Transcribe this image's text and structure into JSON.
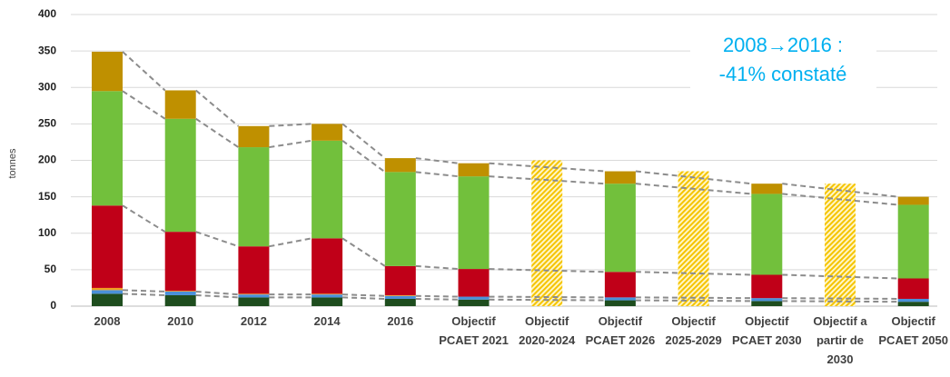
{
  "chart_data": {
    "type": "bar",
    "stacked": true,
    "y_label": "tonnes",
    "annotation": [
      "2008→2016 :",
      "-41% constaté"
    ],
    "annotation_color": "#00b0f0",
    "categories": [
      "2008",
      "2010",
      "2012",
      "2014",
      "2016",
      "Objectif PCAET 2021",
      "Objectif 2020-2024",
      "Objectif PCAET 2026",
      "Objectif 2025-2029",
      "Objectif PCAET 2030",
      "Objectif a partir de 2030",
      "Objectif PCAET 2050"
    ],
    "series": [
      {
        "color": "#1e4d1e",
        "values": [
          17,
          15,
          12,
          12,
          10,
          9,
          null,
          8,
          null,
          7,
          null,
          6
        ]
      },
      {
        "color": "#4a90d9",
        "values": [
          5,
          5,
          4,
          4,
          4,
          4,
          null,
          4,
          null,
          4,
          null,
          4
        ]
      },
      {
        "color": "#f0a020",
        "values": [
          3,
          1,
          1,
          1,
          1,
          0,
          null,
          0,
          null,
          0,
          null,
          0
        ]
      },
      {
        "color": "#c00018",
        "values": [
          113,
          81,
          65,
          76,
          40,
          38,
          null,
          35,
          null,
          32,
          null,
          28
        ]
      },
      {
        "color": "#72c03c",
        "values": [
          157,
          155,
          136,
          134,
          129,
          127,
          null,
          121,
          null,
          111,
          null,
          101
        ]
      },
      {
        "color": "#bf9000",
        "values": [
          54,
          39,
          29,
          23,
          19,
          18,
          null,
          17,
          null,
          14,
          null,
          11
        ]
      },
      {
        "color": "#f5c400",
        "hatched": true,
        "values": [
          null,
          null,
          null,
          null,
          null,
          null,
          200,
          null,
          185,
          null,
          168,
          null
        ]
      }
    ],
    "ylim": [
      0,
      400
    ],
    "yticks": [
      0,
      50,
      100,
      150,
      200,
      250,
      300,
      350,
      400
    ],
    "grid": true,
    "trend_lines": true
  }
}
